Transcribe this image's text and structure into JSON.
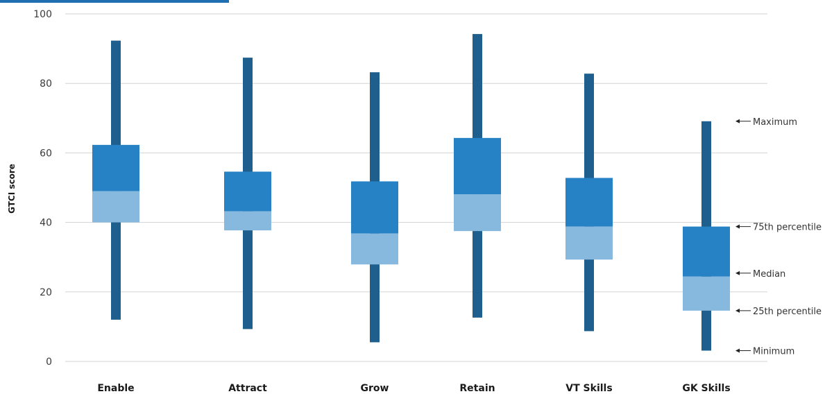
{
  "chart_data": {
    "type": "box",
    "ylabel": "GTCI score",
    "ylim": [
      0,
      100
    ],
    "yticks": [
      0,
      20,
      40,
      60,
      80,
      100
    ],
    "grid": true,
    "categories": [
      "Enable",
      "Attract",
      "Grow",
      "Retain",
      "VT Skills",
      "GK Skills"
    ],
    "series": [
      {
        "category": "Enable",
        "min": 12,
        "q1": 40,
        "median": 49,
        "q3": 62.3,
        "max": 92.3
      },
      {
        "category": "Attract",
        "min": 9.3,
        "q1": 37.7,
        "median": 43.2,
        "q3": 54.6,
        "max": 87.4
      },
      {
        "category": "Grow",
        "min": 5.5,
        "q1": 27.9,
        "median": 36.8,
        "q3": 51.8,
        "max": 83.2
      },
      {
        "category": "Retain",
        "min": 12.6,
        "q1": 37.5,
        "median": 48.1,
        "q3": 64.3,
        "max": 94.2
      },
      {
        "category": "VT Skills",
        "min": 8.7,
        "q1": 29.3,
        "median": 38.8,
        "q3": 52.8,
        "max": 82.8
      },
      {
        "category": "GK Skills",
        "min": 3.1,
        "q1": 14.6,
        "median": 24.4,
        "q3": 38.8,
        "max": 69.1
      }
    ],
    "annotations": [
      "Maximum",
      "75th percentile",
      "Median",
      "25th percentile",
      "Minimum"
    ],
    "colors": {
      "whisker": "#1f5f8e",
      "upper_box": "#2682c4",
      "lower_box": "#87b8de",
      "grid": "#d3d3d3",
      "title_strip": "#1f6fb2"
    }
  }
}
